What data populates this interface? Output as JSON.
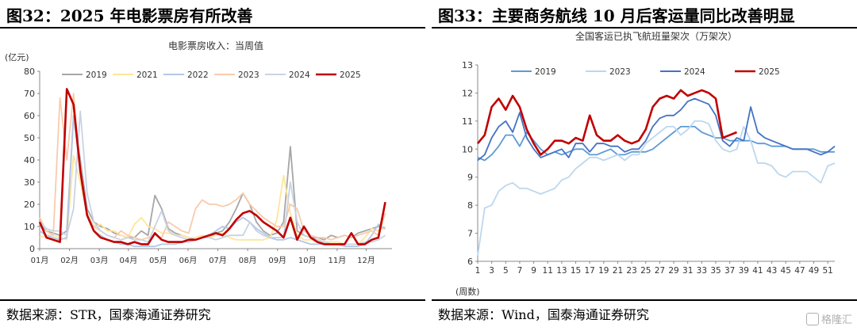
{
  "left": {
    "figure_title": "图32：2025 年电影票房有所改善",
    "source": "数据来源：STR，国泰海通证券研究"
  },
  "right": {
    "figure_title": "图33：主要商务航线 10 月后客运量同比改善明显",
    "source": "数据来源：Wind，国泰海通证券研究"
  },
  "watermark": "格隆汇",
  "colors": {
    "box_office": {
      "2019": "#a6a6a6",
      "2021": "#ffe699",
      "2022": "#b4c7e7",
      "2023": "#f8cbad",
      "2024": "#c9d3e3",
      "2025": "#c00000"
    },
    "flights": {
      "2019": "#5b9bd5",
      "2023": "#bdd7ee",
      "2024": "#4472c4",
      "2025": "#c00000"
    }
  },
  "chart_data": [
    {
      "type": "line",
      "title": "电影票房收入：当周值",
      "ylabel": "(亿元)",
      "ylim": [
        0,
        80
      ],
      "yticks": [
        0,
        10,
        20,
        30,
        40,
        50,
        60,
        70,
        80
      ],
      "xlim": [
        0,
        52
      ],
      "xtick_labels": [
        "01月",
        "02月",
        "03月",
        "04月",
        "05月",
        "06月",
        "07月",
        "08月",
        "09月",
        "10月",
        "11月",
        "12月"
      ],
      "xtick_positions": [
        0,
        4.4,
        8.8,
        13.1,
        17.5,
        21.9,
        26.3,
        30.7,
        35.1,
        39.5,
        43.9,
        48.2
      ],
      "legend": "top",
      "series": [
        {
          "name": "2019",
          "x": [
            0,
            1,
            2,
            3,
            4,
            5,
            6,
            7,
            8,
            9,
            10,
            11,
            12,
            13,
            14,
            15,
            16,
            17,
            18,
            19,
            20,
            21,
            22,
            23,
            24,
            25,
            26,
            27,
            28,
            29,
            30,
            31,
            32,
            33,
            34,
            35,
            36,
            37,
            38,
            39,
            40,
            41,
            42,
            43,
            44,
            45,
            46,
            47,
            48,
            49,
            50,
            51
          ],
          "values": [
            11,
            8,
            7,
            6,
            8,
            60,
            40,
            18,
            12,
            10,
            9,
            7,
            6,
            5,
            5,
            8,
            6,
            24,
            18,
            9,
            7,
            6,
            5,
            4,
            5,
            5,
            7,
            8,
            12,
            18,
            25,
            20,
            12,
            8,
            6,
            7,
            12,
            46,
            8,
            6,
            5,
            5,
            4,
            6,
            5,
            6,
            5,
            7,
            8,
            9,
            10,
            9
          ]
        },
        {
          "name": "2021",
          "x": [
            0,
            1,
            2,
            3,
            4,
            5,
            6,
            7,
            8,
            9,
            10,
            11,
            12,
            13,
            14,
            15,
            16,
            17,
            18,
            19,
            20,
            21,
            22,
            23,
            24,
            25,
            26,
            27,
            28,
            29,
            30,
            31,
            32,
            33,
            34,
            35,
            36,
            37,
            38,
            39,
            40,
            41,
            42,
            43,
            44,
            45,
            46,
            47,
            48,
            49,
            50,
            51
          ],
          "values": [
            5,
            6,
            6,
            5,
            4,
            42,
            30,
            16,
            10,
            11,
            8,
            8,
            6,
            5,
            11,
            14,
            10,
            9,
            7,
            7,
            6,
            6,
            5,
            5,
            6,
            5,
            6,
            7,
            5,
            4,
            4,
            4,
            4,
            4,
            5,
            13,
            33,
            16,
            6,
            4,
            4,
            4,
            3,
            3,
            3,
            2,
            2,
            2,
            5,
            9,
            8,
            10
          ]
        },
        {
          "name": "2022",
          "x": [
            0,
            1,
            2,
            3,
            4,
            5,
            6,
            7,
            8,
            9,
            10,
            11,
            12,
            13,
            14,
            15,
            16,
            17,
            18,
            19,
            20,
            21,
            22,
            23,
            24,
            25,
            26,
            27,
            28,
            29,
            30,
            31,
            32,
            33,
            34,
            35,
            36,
            37,
            38,
            39,
            40,
            41,
            42,
            43,
            44,
            45,
            46,
            47,
            48,
            49,
            50,
            51
          ],
          "values": [
            8,
            6,
            5,
            4,
            5,
            60,
            35,
            16,
            8,
            6,
            4,
            3,
            2,
            2,
            1,
            1,
            1,
            1,
            2,
            2,
            2,
            3,
            3,
            4,
            5,
            6,
            8,
            10,
            9,
            12,
            14,
            12,
            9,
            7,
            5,
            4,
            4,
            5,
            4,
            3,
            2,
            2,
            2,
            2,
            2,
            1,
            1,
            1,
            2,
            6,
            11,
            9
          ]
        },
        {
          "name": "2023",
          "x": [
            0,
            1,
            2,
            3,
            4,
            5,
            6,
            7,
            8,
            9,
            10,
            11,
            12,
            13,
            14,
            15,
            16,
            17,
            18,
            19,
            20,
            21,
            22,
            23,
            24,
            25,
            26,
            27,
            28,
            29,
            30,
            31,
            32,
            33,
            34,
            35,
            36,
            37,
            38,
            39,
            40,
            41,
            42,
            43,
            44,
            45,
            46,
            47,
            48,
            49,
            50,
            51
          ],
          "values": [
            14,
            8,
            6,
            68,
            40,
            70,
            35,
            15,
            10,
            8,
            6,
            5,
            8,
            6,
            5,
            4,
            5,
            6,
            5,
            12,
            10,
            8,
            7,
            18,
            22,
            20,
            20,
            19,
            20,
            22,
            25,
            20,
            17,
            14,
            12,
            10,
            10,
            20,
            18,
            8,
            6,
            5,
            5,
            4,
            5,
            6,
            5,
            6,
            7,
            8,
            6,
            16
          ]
        },
        {
          "name": "2024",
          "x": [
            0,
            1,
            2,
            3,
            4,
            5,
            6,
            7,
            8,
            9,
            10,
            11,
            12,
            13,
            14,
            15,
            16,
            17,
            18,
            19,
            20,
            21,
            22,
            23,
            24,
            25,
            26,
            27,
            28,
            29,
            30,
            31,
            32,
            33,
            34,
            35,
            36,
            37,
            38,
            39,
            40,
            41,
            42,
            43,
            44,
            45,
            46,
            47,
            48,
            49,
            50,
            51
          ],
          "values": [
            12,
            9,
            8,
            8,
            6,
            18,
            62,
            25,
            12,
            8,
            6,
            5,
            4,
            5,
            4,
            4,
            3,
            10,
            17,
            8,
            6,
            5,
            4,
            4,
            5,
            5,
            4,
            5,
            6,
            6,
            6,
            12,
            8,
            6,
            5,
            5,
            5,
            30,
            12,
            6,
            5,
            4,
            3,
            2,
            2,
            2,
            2,
            2,
            3,
            3,
            4,
            6
          ]
        },
        {
          "name": "2025",
          "x": [
            0,
            1,
            2,
            3,
            4,
            5,
            6,
            7,
            8,
            9,
            10,
            11,
            12,
            13,
            14,
            15,
            16,
            17,
            18,
            19,
            20,
            21,
            22,
            23,
            24,
            25,
            26,
            27,
            28,
            29,
            30,
            31,
            32,
            33,
            34,
            35,
            36,
            37,
            38,
            39,
            40,
            41,
            42,
            43,
            44,
            45,
            46,
            47,
            48,
            49,
            50,
            51
          ],
          "values": [
            12,
            5,
            4,
            3,
            72,
            65,
            35,
            15,
            8,
            5,
            4,
            3,
            3,
            2,
            3,
            2,
            2,
            7,
            4,
            3,
            3,
            3,
            4,
            4,
            5,
            6,
            7,
            6,
            9,
            13,
            16,
            17,
            15,
            12,
            10,
            8,
            5,
            14,
            4,
            10,
            5,
            3,
            2,
            2,
            2,
            2,
            7,
            2,
            2,
            4,
            5,
            21
          ]
        }
      ]
    },
    {
      "type": "line",
      "title": "全国客运已执飞航班量架次（万架次）",
      "xlabel": "(周数)",
      "ylim": [
        6,
        13
      ],
      "yticks": [
        6,
        7,
        8,
        9,
        10,
        11,
        12,
        13
      ],
      "xlim": [
        1,
        52
      ],
      "xtick_labels": [
        "1",
        "3",
        "5",
        "7",
        "9",
        "11",
        "13",
        "15",
        "17",
        "19",
        "21",
        "23",
        "25",
        "27",
        "29",
        "31",
        "33",
        "35",
        "37",
        "39",
        "41",
        "43",
        "45",
        "47",
        "49",
        "51"
      ],
      "legend": "top",
      "series": [
        {
          "name": "2019",
          "x": [
            1,
            2,
            3,
            4,
            5,
            6,
            7,
            8,
            9,
            10,
            11,
            12,
            13,
            14,
            15,
            16,
            17,
            18,
            19,
            20,
            21,
            22,
            23,
            24,
            25,
            26,
            27,
            28,
            29,
            30,
            31,
            32,
            33,
            34,
            35,
            36,
            37,
            38,
            39,
            40,
            41,
            42,
            43,
            44,
            45,
            46,
            47,
            48,
            49,
            50,
            51,
            52
          ],
          "values": [
            9.7,
            9.6,
            9.8,
            10.1,
            10.5,
            10.5,
            10.1,
            10.6,
            10.3,
            10.0,
            9.8,
            9.9,
            9.8,
            9.9,
            10.0,
            10.0,
            9.8,
            9.8,
            9.9,
            10.0,
            9.8,
            9.8,
            9.9,
            9.9,
            9.9,
            10.0,
            10.2,
            10.4,
            10.6,
            10.8,
            10.8,
            10.8,
            10.6,
            10.5,
            10.4,
            10.4,
            10.3,
            10.3,
            10.3,
            10.3,
            10.2,
            10.2,
            10.1,
            10.1,
            10.1,
            10.0,
            10.0,
            10.0,
            10.0,
            9.9,
            9.9,
            9.9
          ]
        },
        {
          "name": "2023",
          "x": [
            1,
            2,
            3,
            4,
            5,
            6,
            7,
            8,
            9,
            10,
            11,
            12,
            13,
            14,
            15,
            16,
            17,
            18,
            19,
            20,
            21,
            22,
            23,
            24,
            25,
            26,
            27,
            28,
            29,
            30,
            31,
            32,
            33,
            34,
            35,
            36,
            37,
            38,
            39,
            40,
            41,
            42,
            43,
            44,
            45,
            46,
            47,
            48,
            49,
            50,
            51,
            52
          ],
          "values": [
            6.2,
            7.9,
            8.0,
            8.5,
            8.7,
            8.8,
            8.6,
            8.6,
            8.5,
            8.4,
            8.5,
            8.6,
            8.9,
            9.0,
            9.3,
            9.5,
            9.7,
            9.7,
            9.6,
            9.7,
            9.8,
            9.6,
            9.8,
            9.8,
            10.2,
            10.4,
            10.6,
            10.8,
            10.8,
            10.5,
            10.7,
            11.0,
            11.0,
            10.9,
            10.3,
            10.0,
            9.9,
            10.0,
            10.8,
            10.3,
            9.5,
            9.5,
            9.4,
            9.1,
            9.0,
            9.2,
            9.2,
            9.2,
            9.0,
            8.8,
            9.4,
            9.5
          ]
        },
        {
          "name": "2024",
          "x": [
            1,
            2,
            3,
            4,
            5,
            6,
            7,
            8,
            9,
            10,
            11,
            12,
            13,
            14,
            15,
            16,
            17,
            18,
            19,
            20,
            21,
            22,
            23,
            24,
            25,
            26,
            27,
            28,
            29,
            30,
            31,
            32,
            33,
            34,
            35,
            36,
            37,
            38,
            39,
            40,
            41,
            42,
            43,
            44,
            45,
            46,
            47,
            48,
            49,
            50,
            51,
            52
          ],
          "values": [
            9.6,
            9.8,
            10.4,
            10.8,
            11.0,
            10.6,
            11.3,
            10.4,
            10.0,
            9.7,
            9.8,
            9.9,
            10.0,
            9.7,
            10.2,
            10.2,
            9.9,
            10.2,
            10.2,
            10.1,
            10.1,
            9.9,
            10.0,
            10.0,
            10.3,
            10.8,
            11.1,
            11.2,
            11.2,
            11.4,
            11.7,
            11.8,
            11.7,
            11.6,
            11.2,
            10.3,
            10.1,
            10.4,
            10.3,
            11.5,
            10.6,
            10.4,
            10.3,
            10.2,
            10.1,
            10.0,
            10.0,
            10.0,
            9.9,
            9.8,
            9.9,
            10.1
          ]
        },
        {
          "name": "2025",
          "x": [
            1,
            2,
            3,
            4,
            5,
            6,
            7,
            8,
            9,
            10,
            11,
            12,
            13,
            14,
            15,
            16,
            17,
            18,
            19,
            20,
            21,
            22,
            23,
            24,
            25,
            26,
            27,
            28,
            29,
            30,
            31,
            32,
            33,
            34,
            35,
            36,
            37,
            38
          ],
          "values": [
            10.2,
            10.5,
            11.5,
            11.8,
            11.4,
            11.9,
            11.5,
            10.7,
            10.2,
            9.8,
            10.0,
            10.3,
            10.3,
            10.2,
            10.4,
            10.3,
            11.2,
            10.5,
            10.3,
            10.3,
            10.5,
            10.3,
            10.2,
            10.3,
            10.7,
            11.5,
            11.8,
            11.9,
            11.8,
            12.1,
            11.9,
            12.0,
            12.1,
            12.0,
            11.8,
            10.4,
            10.5,
            10.6
          ]
        }
      ]
    }
  ]
}
